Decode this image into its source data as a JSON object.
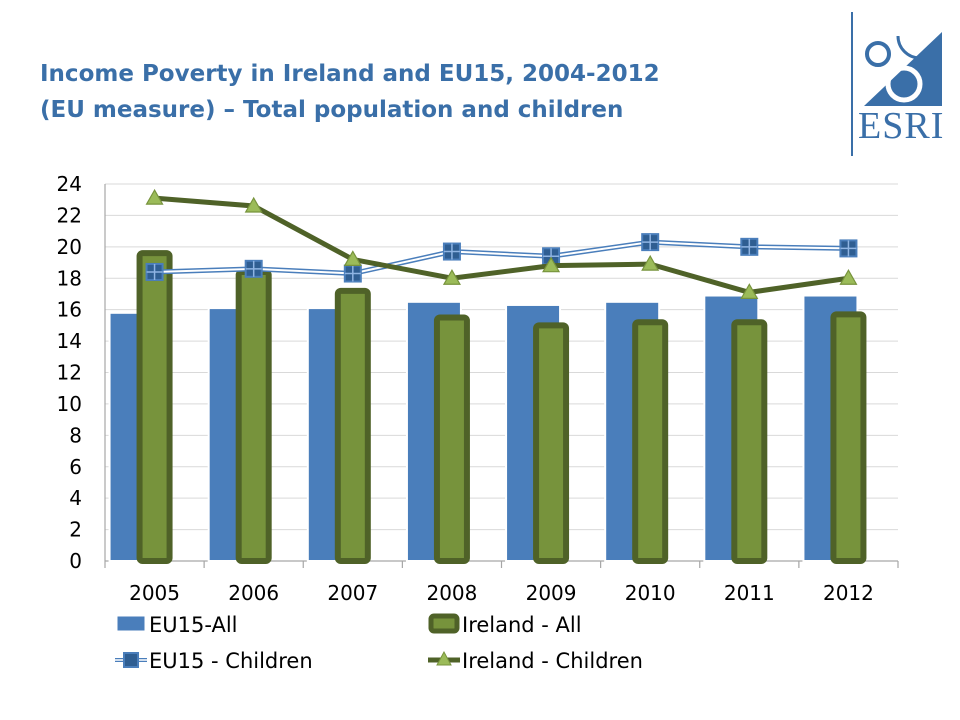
{
  "slide": {
    "title_line1": "Income Poverty in Ireland and EU15, 2004-2012",
    "title_line2": "(EU measure) – Total population and children"
  },
  "logo": {
    "text": "ESRI",
    "color": "#3a6fa8"
  },
  "chart_data": {
    "type": "bar",
    "categories": [
      "2005",
      "2006",
      "2007",
      "2008",
      "2009",
      "2010",
      "2011",
      "2012"
    ],
    "ylim": [
      0,
      24
    ],
    "yticks": [
      0,
      2,
      4,
      6,
      8,
      10,
      12,
      14,
      16,
      18,
      20,
      22,
      24
    ],
    "grid": true,
    "legend_position": "bottom",
    "series": [
      {
        "name": "EU15-All",
        "kind": "bar",
        "color": "#4a7ebb",
        "values": [
          15.8,
          16.1,
          16.1,
          16.5,
          16.3,
          16.5,
          16.9,
          16.9
        ]
      },
      {
        "name": "Ireland - All",
        "kind": "bar",
        "color": "#77933c",
        "edge": "#4f6228",
        "values": [
          19.6,
          18.4,
          17.2,
          15.5,
          15.0,
          15.2,
          15.2,
          15.7
        ]
      },
      {
        "name": "EU15 - Children",
        "kind": "line",
        "color": "#4a7ebb",
        "marker": "square",
        "values": [
          18.4,
          18.6,
          18.3,
          19.7,
          19.4,
          20.3,
          20.0,
          19.9
        ]
      },
      {
        "name": "Ireland - Children",
        "kind": "line",
        "color": "#4f6228",
        "marker": "triangle",
        "values": [
          23.1,
          22.6,
          19.2,
          18.0,
          18.8,
          18.9,
          17.1,
          18.0
        ]
      }
    ]
  }
}
